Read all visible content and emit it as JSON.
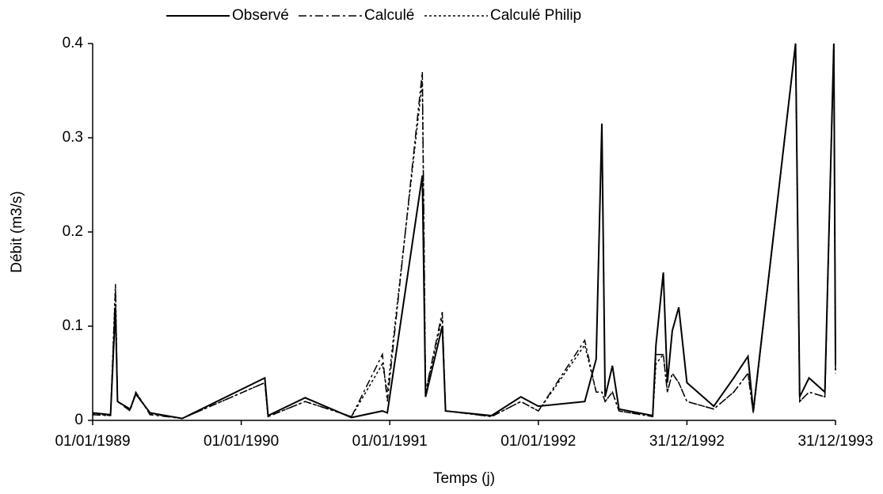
{
  "chart_data": {
    "type": "line",
    "x_label": "Temps (j)",
    "y_label": "Débit (m3/s)",
    "x": [
      "1989-01-01",
      "1989-02-14",
      "1989-02-26",
      "1989-03-03",
      "1989-04-03",
      "1989-04-17",
      "1989-05-22",
      "1989-08-09",
      "1990-02-28",
      "1990-03-08",
      "1990-06-07",
      "1990-09-29",
      "1990-12-14",
      "1990-12-26",
      "1991-03-22",
      "1991-03-30",
      "1991-05-10",
      "1991-05-18",
      "1991-09-08",
      "1991-11-19",
      "1992-01-01",
      "1992-04-24",
      "1992-05-22",
      "1992-06-05",
      "1992-06-13",
      "1992-07-01",
      "1992-07-17",
      "1992-10-08",
      "1992-10-16",
      "1992-11-03",
      "1992-11-13",
      "1992-11-25",
      "1992-12-11",
      "1992-12-31",
      "1993-03-07",
      "1993-04-25",
      "1993-05-30",
      "1993-06-12",
      "1993-09-24",
      "1993-10-04",
      "1993-10-27",
      "1993-12-05",
      "1993-12-27",
      "1993-12-31"
    ],
    "series": [
      {
        "name": "Observé",
        "color": "#000000",
        "style": "solid",
        "values": [
          0.008,
          0.006,
          0.12,
          0.02,
          0.012,
          0.028,
          0.008,
          0.002,
          0.045,
          0.005,
          0.024,
          0.003,
          0.01,
          0.008,
          0.26,
          0.025,
          0.1,
          0.01,
          0.005,
          0.025,
          0.015,
          0.02,
          0.065,
          0.315,
          0.025,
          0.058,
          0.012,
          0.005,
          0.08,
          0.157,
          0.04,
          0.095,
          0.12,
          0.04,
          0.015,
          0.045,
          0.068,
          0.01,
          0.4,
          0.025,
          0.045,
          0.03,
          0.4,
          0.06
        ]
      },
      {
        "name": "Calculé",
        "color": "#000000",
        "style": "dashdot",
        "values": [
          0.006,
          0.005,
          0.14,
          0.02,
          0.01,
          0.03,
          0.006,
          0.002,
          0.04,
          0.004,
          0.02,
          0.004,
          0.07,
          0.02,
          0.37,
          0.03,
          0.115,
          0.01,
          0.004,
          0.02,
          0.01,
          0.085,
          0.03,
          0.03,
          0.02,
          0.03,
          0.01,
          0.004,
          0.07,
          0.07,
          0.03,
          0.05,
          0.04,
          0.02,
          0.012,
          0.03,
          0.05,
          0.008,
          0.4,
          0.02,
          0.03,
          0.025,
          0.4,
          0.05
        ]
      },
      {
        "name": "Calculé Philip",
        "color": "#000000",
        "style": "dotted",
        "values": [
          0.007,
          0.005,
          0.145,
          0.02,
          0.011,
          0.03,
          0.007,
          0.002,
          0.04,
          0.004,
          0.02,
          0.004,
          0.06,
          0.03,
          0.36,
          0.03,
          0.11,
          0.01,
          0.004,
          0.02,
          0.01,
          0.08,
          0.03,
          0.03,
          0.02,
          0.03,
          0.01,
          0.004,
          0.06,
          0.07,
          0.03,
          0.05,
          0.04,
          0.02,
          0.012,
          0.03,
          0.05,
          0.008,
          0.4,
          0.02,
          0.03,
          0.025,
          0.4,
          0.05
        ]
      }
    ],
    "xlim": [
      "1989-01-01",
      "1993-12-31"
    ],
    "xticks": [
      {
        "value": "1989-01-01",
        "label": "01/01/1989"
      },
      {
        "value": "1990-01-01",
        "label": "01/01/1990"
      },
      {
        "value": "1991-01-01",
        "label": "01/01/1991"
      },
      {
        "value": "1992-01-01",
        "label": "01/01/1992"
      },
      {
        "value": "1992-12-31",
        "label": "31/12/1992"
      },
      {
        "value": "1993-12-31",
        "label": "31/12/1993"
      }
    ],
    "ylim": [
      0,
      0.4
    ],
    "yticks": [
      0,
      0.1,
      0.2,
      0.3,
      0.4
    ],
    "legend": "top"
  }
}
